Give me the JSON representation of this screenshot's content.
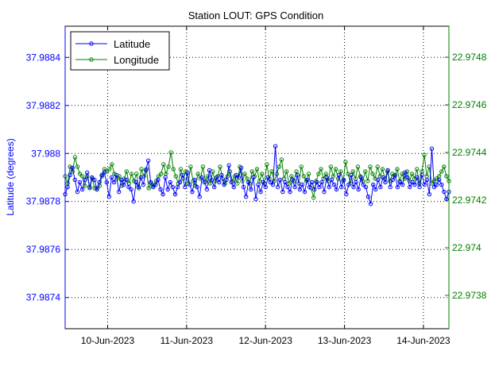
{
  "chart_data": {
    "type": "line",
    "title": "Station LOUT: GPS Condition",
    "ylabel": "Latitude (degrees)",
    "y2label": "",
    "xlabel": "",
    "grid": true,
    "legend_position": "top-left",
    "x_range": [
      "2023-06-09 11:05",
      "2023-06-14 07:45"
    ],
    "ylim": [
      37.98727,
      37.98853
    ],
    "y2lim": [
      22.97366,
      22.97493
    ],
    "x_ticks": [
      "10-Jun-2023",
      "11-Jun-2023",
      "12-Jun-2023",
      "13-Jun-2023",
      "14-Jun-2023"
    ],
    "y_ticks": [
      "37.9874",
      "37.9876",
      "37.9878",
      "37.988",
      "37.9882",
      "37.9884"
    ],
    "y2_ticks": [
      "22.9738",
      "22.974",
      "22.9742",
      "22.9744",
      "22.9746",
      "22.9748"
    ],
    "series": [
      {
        "name": "Latitude",
        "axis": "left",
        "color": "#0000ff",
        "t_start": "2023-06-09 11:05",
        "t_end": "2023-06-14 07:45",
        "values": [
          37.98783,
          37.98786,
          37.98791,
          37.98794,
          37.98789,
          37.98784,
          37.98788,
          37.98785,
          37.98789,
          37.98792,
          37.98786,
          37.9879,
          37.98789,
          37.98785,
          37.98788,
          37.98791,
          37.98792,
          37.98788,
          37.98782,
          37.9879,
          37.98788,
          37.98791,
          37.98784,
          37.98789,
          37.98787,
          37.98789,
          37.98786,
          37.98785,
          37.9878,
          37.98788,
          37.98786,
          37.9879,
          37.98787,
          37.98793,
          37.98797,
          37.98788,
          37.98786,
          37.98787,
          37.98789,
          37.98785,
          37.98783,
          37.9879,
          37.98785,
          37.98788,
          37.98786,
          37.98783,
          37.98786,
          37.98788,
          37.98791,
          37.98786,
          37.98792,
          37.98787,
          37.98784,
          37.98789,
          37.98786,
          37.98782,
          37.9879,
          37.98788,
          37.98785,
          37.98793,
          37.98789,
          37.98786,
          37.9879,
          37.98788,
          37.98791,
          37.98787,
          37.98789,
          37.98795,
          37.98788,
          37.98786,
          37.98791,
          37.9879,
          37.98794,
          37.98786,
          37.98782,
          37.98788,
          37.98785,
          37.9879,
          37.98781,
          37.98787,
          37.98784,
          37.98788,
          37.98786,
          37.9879,
          37.98788,
          37.98787,
          37.98803,
          37.98786,
          37.98789,
          37.98784,
          37.98788,
          37.98786,
          37.98784,
          37.98789,
          37.98786,
          37.98791,
          37.98785,
          37.98787,
          37.98784,
          37.98789,
          37.98786,
          37.98788,
          37.98785,
          37.98788,
          37.98786,
          37.98788,
          37.98784,
          37.9879,
          37.98786,
          37.98789,
          37.98787,
          37.98785,
          37.98791,
          37.98786,
          37.98789,
          37.98783,
          37.98787,
          37.98791,
          37.98786,
          37.98788,
          37.98785,
          37.9879,
          37.98787,
          37.98786,
          37.98782,
          37.98779,
          37.98787,
          37.98785,
          37.98789,
          37.98786,
          37.9879,
          37.98788,
          37.98793,
          37.98786,
          37.98789,
          37.98791,
          37.98786,
          37.98788,
          37.98787,
          37.98792,
          37.9879,
          37.98786,
          37.98788,
          37.98787,
          37.9879,
          37.98786,
          37.98791,
          37.98787,
          37.98789,
          37.98783,
          37.98802,
          37.98786,
          37.98787,
          37.98789,
          37.98787,
          37.98784,
          37.98781,
          37.98784
        ]
      },
      {
        "name": "Longitude",
        "axis": "right",
        "color": "#008000",
        "t_start": "2023-06-09 11:05",
        "t_end": "2023-06-14 07:45",
        "values": [
          22.9743,
          22.97427,
          22.97434,
          22.97432,
          22.97438,
          22.97434,
          22.97431,
          22.9743,
          22.97426,
          22.9743,
          22.97425,
          22.97429,
          22.97425,
          22.97425,
          22.97426,
          22.9743,
          22.97433,
          22.97432,
          22.97433,
          22.97435,
          22.97431,
          22.97429,
          22.9743,
          22.97426,
          22.97429,
          22.97432,
          22.97427,
          22.97431,
          22.97428,
          22.97431,
          22.97425,
          22.97433,
          22.9743,
          22.97433,
          22.97425,
          22.97427,
          22.97426,
          22.97428,
          22.9743,
          22.97431,
          22.97435,
          22.97431,
          22.97434,
          22.9744,
          22.97433,
          22.9743,
          22.97427,
          22.97433,
          22.97429,
          22.97432,
          22.97427,
          22.97434,
          22.97428,
          22.97426,
          22.97431,
          22.97429,
          22.97434,
          22.97428,
          22.9743,
          22.97427,
          22.97432,
          22.97428,
          22.9743,
          22.97434,
          22.97429,
          22.97427,
          22.9743,
          22.97432,
          22.97428,
          22.9743,
          22.97427,
          22.97434,
          22.97428,
          22.97431,
          22.97429,
          22.97427,
          22.97432,
          22.9743,
          22.97433,
          22.97428,
          22.97431,
          22.97427,
          22.97435,
          22.97429,
          22.97432,
          22.97428,
          22.97431,
          22.97434,
          22.97437,
          22.97429,
          22.97432,
          22.97427,
          22.9743,
          22.97428,
          22.97432,
          22.97427,
          22.97434,
          22.9743,
          22.97428,
          22.97431,
          22.97425,
          22.97421,
          22.97428,
          22.97431,
          22.97433,
          22.97429,
          22.97431,
          22.97428,
          22.97434,
          22.9743,
          22.97433,
          22.97429,
          22.97432,
          22.97428,
          22.97436,
          22.97431,
          22.97427,
          22.97432,
          22.97429,
          22.97434,
          22.9743,
          22.97428,
          22.97432,
          22.97428,
          22.97434,
          22.97431,
          22.97429,
          22.97434,
          22.9743,
          22.97433,
          22.97429,
          22.97432,
          22.97428,
          22.97431,
          22.9743,
          22.97433,
          22.97428,
          22.97431,
          22.97429,
          22.97432,
          22.97428,
          22.97431,
          22.97429,
          22.97433,
          22.97427,
          22.97432,
          22.97439,
          22.9743,
          22.97434,
          22.97427,
          22.97428,
          22.97429,
          22.9743,
          22.97432,
          22.97434,
          22.9743,
          22.97428
        ]
      }
    ]
  }
}
